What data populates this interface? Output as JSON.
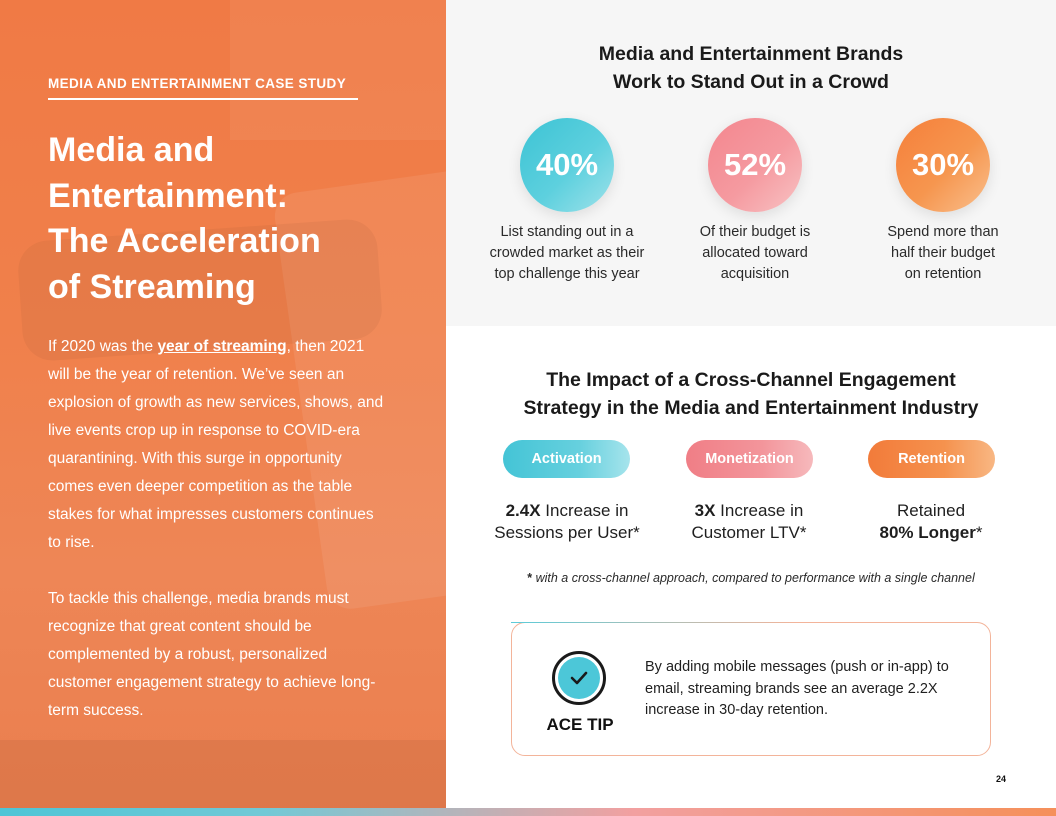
{
  "left": {
    "eyebrow": "MEDIA AND ENTERTAINMENT CASE STUDY",
    "title_lines": [
      "Media and",
      "Entertainment:",
      "The Acceleration",
      "of Streaming"
    ],
    "para1_before": "If 2020 was the ",
    "para1_link": "year of streaming",
    "para1_after": ", then 2021 will be the year of retention. We’ve seen an explosion of growth as new services, shows, and live events crop up in response to COVID-era quarantining. With this surge in opportunity comes even deeper competition as the table stakes for what impresses customers continues to rise.",
    "para2": "To tackle this challenge, media brands must recognize that great content should be complemented by a robust, personalized customer engagement strategy to achieve long-term success."
  },
  "stats_section": {
    "heading_line1": "Media and Entertainment Brands",
    "heading_line2": "Work to Stand Out in a Crowd",
    "stats": [
      {
        "value": "40%",
        "desc_lines": [
          "List standing out in a",
          "crowded market as their",
          "top challenge this year"
        ]
      },
      {
        "value": "52%",
        "desc_lines": [
          "Of their budget is",
          "allocated toward",
          "acquisition"
        ]
      },
      {
        "value": "30%",
        "desc_lines": [
          "Spend more than",
          "half their budget",
          "on retention"
        ]
      }
    ]
  },
  "impact_section": {
    "heading_line1": "The Impact of a Cross-Channel Engagement",
    "heading_line2": "Strategy in the Media and Entertainment Industry",
    "pills": [
      "Activation",
      "Monetization",
      "Retention"
    ],
    "impacts": [
      {
        "bold": "2.4X",
        "rest1": " Increase in",
        "line2": "Sessions per User*"
      },
      {
        "bold": "3X",
        "rest1": " Increase in",
        "line2": "Customer LTV*"
      },
      {
        "line1": "Retained",
        "bold2": "80% Longer",
        "star": "*"
      }
    ],
    "footnote_star": "*",
    "footnote": " with a cross-channel approach, compared to performance with a single channel"
  },
  "tip": {
    "label": "ACE TIP",
    "text": "By adding mobile messages (push or in-app) to email, streaming brands see an average 2.2X increase in 30-day retention."
  },
  "page_number": "24",
  "colors": {
    "orange": "#f07a45",
    "teal": "#4cc7d8",
    "pink": "#f3868e",
    "orange2": "#f57f3a"
  }
}
